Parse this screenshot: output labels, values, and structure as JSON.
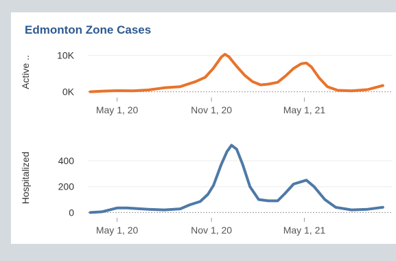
{
  "title": "Edmonton Zone Cases",
  "colors": {
    "active": "#e8732b",
    "hospitalized": "#4e79a7",
    "title": "#2e5a8f"
  },
  "chart_data": [
    {
      "type": "line",
      "ylabel": "Active ..",
      "yticks": [
        0,
        10000
      ],
      "ytick_labels": [
        "0K",
        "10K"
      ],
      "ylim": [
        -1200,
        12000
      ],
      "xlim": [
        "2020-03-05",
        "2021-10-20"
      ],
      "xticks": [
        "May 1, 20",
        "Nov 1, 20",
        "May 1, 21"
      ],
      "grid": "horizontal",
      "series": [
        {
          "values": [
            [
              "2020-03-10",
              0
            ],
            [
              "2020-04-01",
              150
            ],
            [
              "2020-05-01",
              300
            ],
            [
              "2020-06-01",
              250
            ],
            [
              "2020-07-01",
              500
            ],
            [
              "2020-08-01",
              1100
            ],
            [
              "2020-09-01",
              1400
            ],
            [
              "2020-10-01",
              2800
            ],
            [
              "2020-10-20",
              4000
            ],
            [
              "2020-11-05",
              6500
            ],
            [
              "2020-11-20",
              9500
            ],
            [
              "2020-11-27",
              10300
            ],
            [
              "2020-12-05",
              9600
            ],
            [
              "2020-12-20",
              7000
            ],
            [
              "2021-01-05",
              4500
            ],
            [
              "2021-01-20",
              2800
            ],
            [
              "2021-02-05",
              1900
            ],
            [
              "2021-02-20",
              2100
            ],
            [
              "2021-03-10",
              2600
            ],
            [
              "2021-03-25",
              4300
            ],
            [
              "2021-04-10",
              6400
            ],
            [
              "2021-04-25",
              7700
            ],
            [
              "2021-05-05",
              7900
            ],
            [
              "2021-05-15",
              6800
            ],
            [
              "2021-05-30",
              3800
            ],
            [
              "2021-06-15",
              1400
            ],
            [
              "2021-07-05",
              400
            ],
            [
              "2021-08-01",
              250
            ],
            [
              "2021-09-01",
              600
            ],
            [
              "2021-10-01",
              1700
            ]
          ]
        }
      ]
    },
    {
      "type": "line",
      "ylabel": "Hospitalized",
      "yticks": [
        0,
        200,
        400
      ],
      "ytick_labels": [
        "0",
        "200",
        "400"
      ],
      "ylim": [
        -30,
        560
      ],
      "xlim": [
        "2020-03-05",
        "2021-10-20"
      ],
      "xticks": [
        "May 1, 20",
        "Nov 1, 20",
        "May 1, 21"
      ],
      "grid": "horizontal",
      "series": [
        {
          "values": [
            [
              "2020-03-10",
              0
            ],
            [
              "2020-04-01",
              5
            ],
            [
              "2020-05-01",
              35
            ],
            [
              "2020-05-20",
              35
            ],
            [
              "2020-07-01",
              25
            ],
            [
              "2020-08-01",
              20
            ],
            [
              "2020-09-01",
              28
            ],
            [
              "2020-09-20",
              60
            ],
            [
              "2020-10-10",
              85
            ],
            [
              "2020-10-25",
              140
            ],
            [
              "2020-11-05",
              210
            ],
            [
              "2020-11-20",
              370
            ],
            [
              "2020-12-01",
              470
            ],
            [
              "2020-12-10",
              520
            ],
            [
              "2020-12-20",
              490
            ],
            [
              "2021-01-01",
              370
            ],
            [
              "2021-01-15",
              200
            ],
            [
              "2021-02-01",
              100
            ],
            [
              "2021-02-20",
              90
            ],
            [
              "2021-03-10",
              90
            ],
            [
              "2021-03-25",
              150
            ],
            [
              "2021-04-10",
              220
            ],
            [
              "2021-05-05",
              250
            ],
            [
              "2021-05-20",
              200
            ],
            [
              "2021-06-10",
              100
            ],
            [
              "2021-07-01",
              40
            ],
            [
              "2021-08-01",
              20
            ],
            [
              "2021-09-01",
              25
            ],
            [
              "2021-10-01",
              40
            ]
          ]
        }
      ]
    }
  ]
}
